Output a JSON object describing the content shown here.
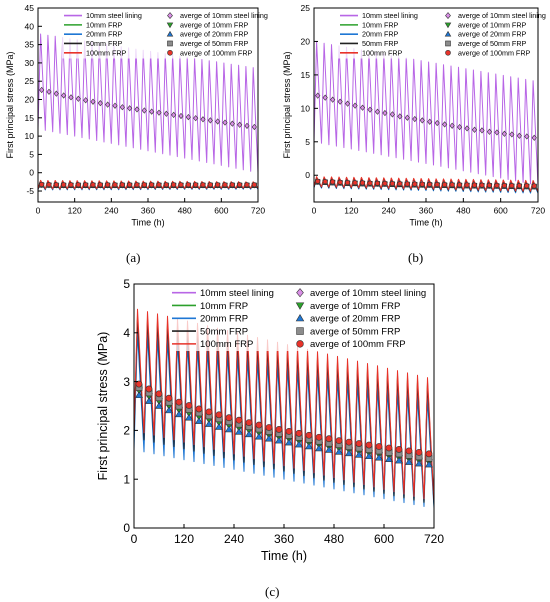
{
  "figure": {
    "captions": [
      "(a)",
      "(b)",
      "(c)"
    ]
  },
  "chart_data": [
    {
      "type": "line",
      "panel": "a",
      "xlabel": "Time (h)",
      "ylabel": "First principal stress (MPa)",
      "xlim": [
        0,
        720
      ],
      "ylim": [
        -8,
        45
      ],
      "xticks": [
        0,
        120,
        240,
        360,
        480,
        600,
        720
      ],
      "yticks": [
        -5,
        0,
        5,
        10,
        15,
        20,
        25,
        30,
        35,
        40,
        45
      ],
      "grid": false,
      "legend_position": "top",
      "cycles": 30,
      "series": [
        {
          "name": "10mm steel lining",
          "color": "#b866e6",
          "kind": "cyclic",
          "peak": [
            38,
            28.5
          ],
          "trough": [
            12,
            0
          ]
        },
        {
          "name": "10mm FRP",
          "color": "#2ca02c",
          "kind": "cyclic",
          "peak": [
            -2.2,
            -2.6
          ],
          "trough": [
            -4.6,
            -4.4
          ]
        },
        {
          "name": "20mm FRP",
          "color": "#1f77d4",
          "kind": "cyclic",
          "peak": [
            -2.3,
            -2.7
          ],
          "trough": [
            -4.7,
            -4.5
          ]
        },
        {
          "name": "50mm FRP",
          "color": "#222222",
          "kind": "cyclic",
          "peak": [
            -2.2,
            -2.6
          ],
          "trough": [
            -4.5,
            -4.3
          ]
        },
        {
          "name": "100mm FRP",
          "color": "#e8332a",
          "kind": "cyclic",
          "peak": [
            -2.1,
            -2.5
          ],
          "trough": [
            -4.4,
            -4.2
          ]
        },
        {
          "name": "averge of 10mm steel lining",
          "color": "#d98fe6",
          "kind": "average",
          "marker": "diamond",
          "values": [
            22.6,
            22.1,
            21.6,
            21.1,
            20.6,
            20.2,
            19.8,
            19.4,
            19.0,
            18.6,
            18.3,
            17.9,
            17.6,
            17.3,
            17.0,
            16.7,
            16.4,
            16.1,
            15.8,
            15.5,
            15.2,
            14.9,
            14.6,
            14.3,
            14.0,
            13.7,
            13.4,
            13.1,
            12.8,
            12.5
          ]
        },
        {
          "name": "averge of 10mm FRP",
          "color": "#2ca02c",
          "kind": "average",
          "marker": "triangle-down",
          "values": [
            -3.4,
            -3.45,
            -3.5,
            -3.5,
            -3.5,
            -3.5,
            -3.5,
            -3.5,
            -3.5,
            -3.5,
            -3.5,
            -3.5,
            -3.5,
            -3.5,
            -3.5,
            -3.5,
            -3.5,
            -3.5,
            -3.5,
            -3.5,
            -3.5,
            -3.5,
            -3.5,
            -3.5,
            -3.5,
            -3.5,
            -3.5,
            -3.5,
            -3.5,
            -3.5
          ]
        },
        {
          "name": "averge of 20mm FRP",
          "color": "#1f77d4",
          "kind": "average",
          "marker": "triangle-up",
          "values": [
            -3.5,
            -3.55,
            -3.6,
            -3.6,
            -3.6,
            -3.6,
            -3.6,
            -3.6,
            -3.6,
            -3.6,
            -3.6,
            -3.6,
            -3.6,
            -3.6,
            -3.6,
            -3.6,
            -3.6,
            -3.6,
            -3.6,
            -3.6,
            -3.6,
            -3.6,
            -3.6,
            -3.6,
            -3.6,
            -3.6,
            -3.6,
            -3.6,
            -3.6,
            -3.6
          ]
        },
        {
          "name": "averge of 50mm FRP",
          "color": "#8c8c8c",
          "kind": "average",
          "marker": "square",
          "values": [
            -3.3,
            -3.35,
            -3.4,
            -3.4,
            -3.4,
            -3.4,
            -3.4,
            -3.4,
            -3.4,
            -3.4,
            -3.4,
            -3.4,
            -3.4,
            -3.4,
            -3.4,
            -3.4,
            -3.4,
            -3.4,
            -3.4,
            -3.4,
            -3.4,
            -3.4,
            -3.4,
            -3.4,
            -3.4,
            -3.4,
            -3.4,
            -3.4,
            -3.4,
            -3.4
          ]
        },
        {
          "name": "averge of 100mm FRP",
          "color": "#e8332a",
          "kind": "average",
          "marker": "circle",
          "values": [
            -3.2,
            -3.25,
            -3.3,
            -3.3,
            -3.3,
            -3.3,
            -3.3,
            -3.3,
            -3.3,
            -3.3,
            -3.3,
            -3.3,
            -3.3,
            -3.3,
            -3.3,
            -3.3,
            -3.3,
            -3.3,
            -3.3,
            -3.3,
            -3.3,
            -3.3,
            -3.3,
            -3.3,
            -3.3,
            -3.3,
            -3.3,
            -3.3,
            -3.3,
            -3.3
          ]
        }
      ]
    },
    {
      "type": "line",
      "panel": "b",
      "xlabel": "Time (h)",
      "ylabel": "First principal stress (MPa)",
      "xlim": [
        0,
        720
      ],
      "ylim": [
        -4,
        25
      ],
      "xticks": [
        0,
        120,
        240,
        360,
        480,
        600,
        720
      ],
      "yticks": [
        -5,
        0,
        5,
        10,
        15,
        20,
        25
      ],
      "grid": false,
      "legend_position": "top",
      "cycles": 30,
      "series": [
        {
          "name": "10mm steel lining",
          "color": "#b866e6",
          "kind": "cyclic",
          "peak": [
            20,
            14
          ],
          "trough": [
            5,
            -1.5
          ]
        },
        {
          "name": "10mm FRP",
          "color": "#2ca02c",
          "kind": "cyclic",
          "peak": [
            -0.3,
            -0.9
          ],
          "trough": [
            -1.8,
            -2.6
          ]
        },
        {
          "name": "20mm FRP",
          "color": "#1f77d4",
          "kind": "cyclic",
          "peak": [
            -0.4,
            -1.0
          ],
          "trough": [
            -1.9,
            -2.7
          ]
        },
        {
          "name": "50mm FRP",
          "color": "#222222",
          "kind": "cyclic",
          "peak": [
            -0.3,
            -0.9
          ],
          "trough": [
            -1.8,
            -2.5
          ]
        },
        {
          "name": "100mm FRP",
          "color": "#e8332a",
          "kind": "cyclic",
          "peak": [
            -0.2,
            -0.8
          ],
          "trough": [
            -1.7,
            -2.4
          ]
        },
        {
          "name": "averge of 10mm steel lining",
          "color": "#d98fe6",
          "kind": "average",
          "marker": "diamond",
          "values": [
            11.9,
            11.6,
            11.3,
            11.0,
            10.7,
            10.4,
            10.1,
            9.8,
            9.5,
            9.3,
            9.1,
            8.8,
            8.6,
            8.4,
            8.2,
            8.0,
            7.8,
            7.6,
            7.4,
            7.2,
            7.0,
            6.8,
            6.7,
            6.5,
            6.4,
            6.2,
            6.1,
            5.9,
            5.8,
            5.6
          ]
        },
        {
          "name": "averge of 10mm FRP",
          "color": "#2ca02c",
          "kind": "average",
          "marker": "triangle-down",
          "values": [
            -1.0,
            -1.05,
            -1.1,
            -1.15,
            -1.2,
            -1.22,
            -1.25,
            -1.28,
            -1.3,
            -1.32,
            -1.35,
            -1.37,
            -1.4,
            -1.42,
            -1.44,
            -1.46,
            -1.48,
            -1.5,
            -1.52,
            -1.54,
            -1.55,
            -1.57,
            -1.58,
            -1.6,
            -1.62,
            -1.63,
            -1.65,
            -1.66,
            -1.68,
            -1.7
          ]
        },
        {
          "name": "averge of 20mm FRP",
          "color": "#1f77d4",
          "kind": "average",
          "marker": "triangle-up",
          "values": [
            -1.1,
            -1.15,
            -1.2,
            -1.25,
            -1.3,
            -1.32,
            -1.35,
            -1.38,
            -1.4,
            -1.42,
            -1.45,
            -1.47,
            -1.5,
            -1.52,
            -1.54,
            -1.56,
            -1.58,
            -1.6,
            -1.62,
            -1.64,
            -1.65,
            -1.67,
            -1.68,
            -1.7,
            -1.72,
            -1.73,
            -1.75,
            -1.76,
            -1.78,
            -1.8
          ]
        },
        {
          "name": "averge of 50mm FRP",
          "color": "#8c8c8c",
          "kind": "average",
          "marker": "square",
          "values": [
            -0.95,
            -1.0,
            -1.05,
            -1.1,
            -1.15,
            -1.17,
            -1.2,
            -1.23,
            -1.25,
            -1.27,
            -1.3,
            -1.32,
            -1.35,
            -1.37,
            -1.39,
            -1.41,
            -1.43,
            -1.45,
            -1.47,
            -1.49,
            -1.5,
            -1.52,
            -1.53,
            -1.55,
            -1.57,
            -1.58,
            -1.6,
            -1.61,
            -1.63,
            -1.65
          ]
        },
        {
          "name": "averge of 100mm FRP",
          "color": "#e8332a",
          "kind": "average",
          "marker": "circle",
          "values": [
            -0.9,
            -0.95,
            -1.0,
            -1.05,
            -1.1,
            -1.12,
            -1.15,
            -1.18,
            -1.2,
            -1.22,
            -1.25,
            -1.27,
            -1.3,
            -1.32,
            -1.34,
            -1.36,
            -1.38,
            -1.4,
            -1.42,
            -1.44,
            -1.45,
            -1.47,
            -1.48,
            -1.5,
            -1.52,
            -1.53,
            -1.55,
            -1.56,
            -1.58,
            -1.6
          ]
        }
      ]
    },
    {
      "type": "line",
      "panel": "c",
      "xlabel": "Time (h)",
      "ylabel": "First principal stress (MPa)",
      "xlim": [
        0,
        720
      ],
      "ylim": [
        0,
        5
      ],
      "xticks": [
        0,
        120,
        240,
        360,
        480,
        600,
        720
      ],
      "yticks": [
        0,
        1,
        2,
        3,
        4,
        5
      ],
      "grid": false,
      "legend_position": "top",
      "cycles": 30,
      "series": [
        {
          "name": "10mm steel lining",
          "color": "#b866e6",
          "kind": "cyclic",
          "peak": [
            4.2,
            2.8
          ],
          "trough": [
            1.9,
            0.5
          ]
        },
        {
          "name": "10mm FRP",
          "color": "#2ca02c",
          "kind": "cyclic",
          "peak": [
            4.35,
            2.95
          ],
          "trough": [
            1.8,
            0.45
          ]
        },
        {
          "name": "20mm FRP",
          "color": "#1f77d4",
          "kind": "cyclic",
          "peak": [
            4.0,
            2.6
          ],
          "trough": [
            1.6,
            0.4
          ]
        },
        {
          "name": "50mm FRP",
          "color": "#222222",
          "kind": "cyclic",
          "peak": [
            4.3,
            2.9
          ],
          "trough": [
            1.85,
            0.48
          ]
        },
        {
          "name": "100mm FRP",
          "color": "#e8332a",
          "kind": "cyclic",
          "peak": [
            4.5,
            3.05
          ],
          "trough": [
            2.0,
            0.55
          ]
        },
        {
          "name": "averge of 10mm steel lining",
          "color": "#d98fe6",
          "kind": "average",
          "marker": "diamond",
          "values": [
            2.9,
            2.8,
            2.7,
            2.6,
            2.53,
            2.46,
            2.4,
            2.34,
            2.28,
            2.22,
            2.17,
            2.12,
            2.07,
            2.02,
            1.97,
            1.93,
            1.89,
            1.85,
            1.81,
            1.77,
            1.74,
            1.7,
            1.67,
            1.64,
            1.61,
            1.58,
            1.55,
            1.52,
            1.49,
            1.46
          ]
        },
        {
          "name": "averge of 10mm FRP",
          "color": "#2ca02c",
          "kind": "average",
          "marker": "triangle-down",
          "values": [
            2.82,
            2.7,
            2.6,
            2.5,
            2.42,
            2.35,
            2.28,
            2.22,
            2.16,
            2.1,
            2.05,
            2.0,
            1.95,
            1.9,
            1.86,
            1.82,
            1.78,
            1.74,
            1.7,
            1.66,
            1.63,
            1.59,
            1.56,
            1.53,
            1.5,
            1.47,
            1.44,
            1.41,
            1.38,
            1.35
          ]
        },
        {
          "name": "averge of 20mm FRP",
          "color": "#1f77d4",
          "kind": "average",
          "marker": "triangle-up",
          "values": [
            2.72,
            2.6,
            2.5,
            2.41,
            2.33,
            2.26,
            2.19,
            2.13,
            2.07,
            2.02,
            1.97,
            1.92,
            1.87,
            1.83,
            1.79,
            1.75,
            1.71,
            1.67,
            1.63,
            1.6,
            1.56,
            1.53,
            1.5,
            1.47,
            1.44,
            1.41,
            1.38,
            1.35,
            1.32,
            1.3
          ]
        },
        {
          "name": "averge of 50mm FRP",
          "color": "#8c8c8c",
          "kind": "average",
          "marker": "square",
          "values": [
            2.88,
            2.77,
            2.67,
            2.58,
            2.5,
            2.43,
            2.36,
            2.3,
            2.24,
            2.18,
            2.13,
            2.08,
            2.03,
            1.98,
            1.94,
            1.9,
            1.86,
            1.82,
            1.78,
            1.74,
            1.71,
            1.67,
            1.64,
            1.61,
            1.58,
            1.55,
            1.52,
            1.49,
            1.46,
            1.43
          ]
        },
        {
          "name": "averge of 100mm FRP",
          "color": "#e8332a",
          "kind": "average",
          "marker": "circle",
          "values": [
            2.95,
            2.85,
            2.75,
            2.66,
            2.58,
            2.51,
            2.44,
            2.38,
            2.32,
            2.26,
            2.21,
            2.16,
            2.11,
            2.06,
            2.02,
            1.98,
            1.94,
            1.9,
            1.86,
            1.83,
            1.79,
            1.76,
            1.73,
            1.7,
            1.67,
            1.64,
            1.61,
            1.58,
            1.55,
            1.52
          ]
        }
      ]
    }
  ]
}
